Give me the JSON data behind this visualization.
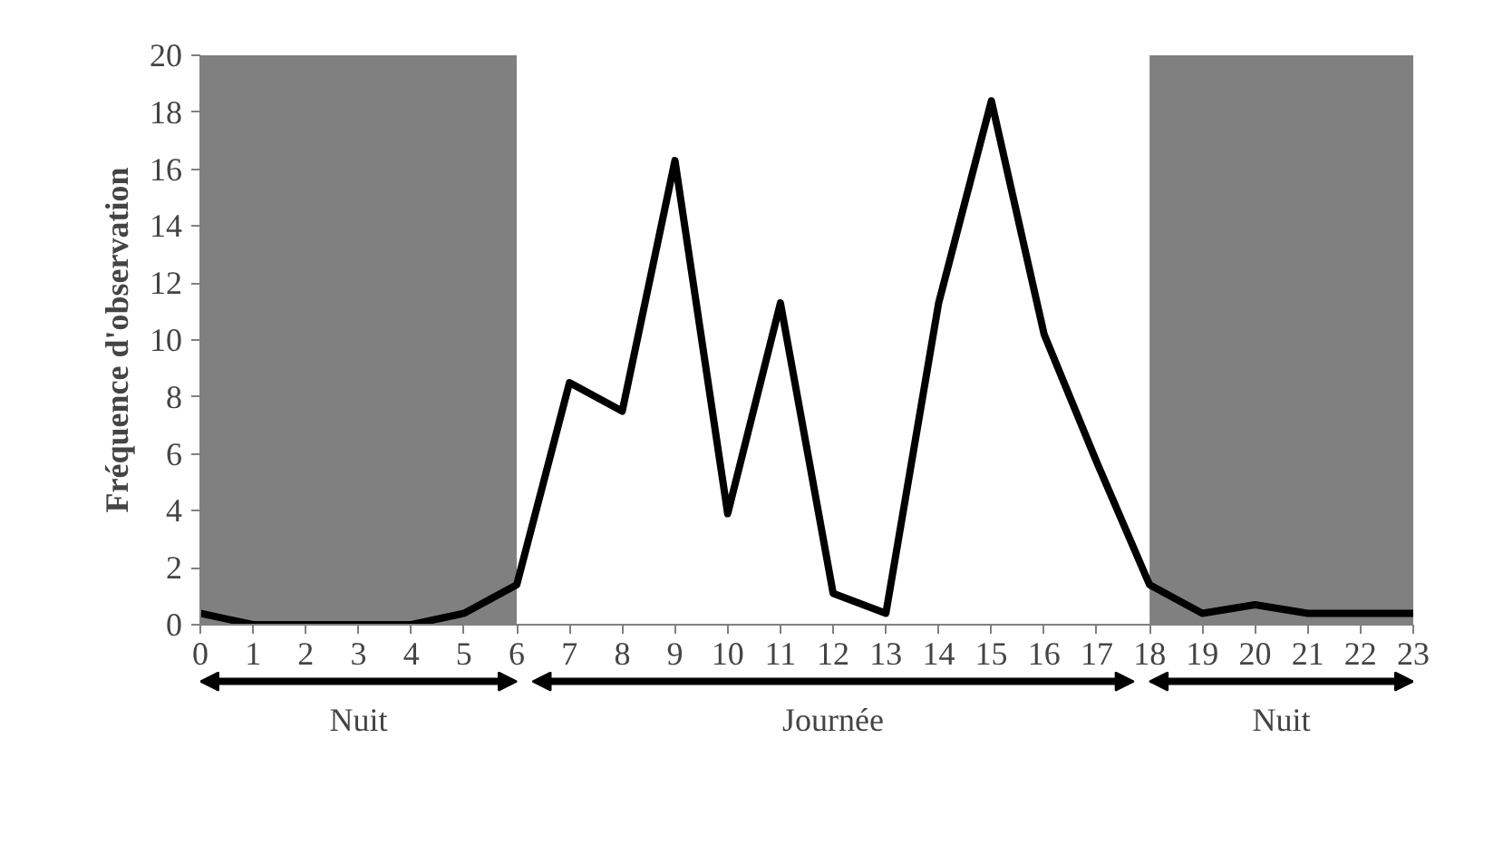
{
  "chart_data": {
    "type": "line",
    "ylabel": "Fréquence d'observation",
    "x": [
      0,
      1,
      2,
      3,
      4,
      5,
      6,
      7,
      8,
      9,
      10,
      11,
      12,
      13,
      14,
      15,
      16,
      17,
      18,
      19,
      20,
      21,
      22,
      23
    ],
    "series": [
      {
        "color": "#000000",
        "values": [
          0.4,
          0,
          0,
          0,
          0,
          0.4,
          1.4,
          8.5,
          7.5,
          16.3,
          3.9,
          11.3,
          1.1,
          0.4,
          11.3,
          18.4,
          10.2,
          5.7,
          1.4,
          0.4,
          0.7,
          0.4,
          0.4,
          0.4
        ]
      }
    ],
    "xlim": [
      0,
      23
    ],
    "xticks": [
      0,
      1,
      2,
      3,
      4,
      5,
      6,
      7,
      8,
      9,
      10,
      11,
      12,
      13,
      14,
      15,
      16,
      17,
      18,
      19,
      20,
      21,
      22,
      23
    ],
    "ylim": [
      0,
      20
    ],
    "yticks": [
      0,
      2,
      4,
      6,
      8,
      10,
      12,
      14,
      16,
      18,
      20
    ],
    "bands": [
      {
        "axis": "x",
        "from": 0,
        "to": 6,
        "label": "Nuit",
        "color": "#808080"
      },
      {
        "axis": "x",
        "from": 18,
        "to": 23,
        "label": "Nuit",
        "color": "#808080"
      }
    ],
    "annotations": [
      "Journée"
    ],
    "grid": false,
    "marker": "none",
    "line_style": "solid"
  }
}
